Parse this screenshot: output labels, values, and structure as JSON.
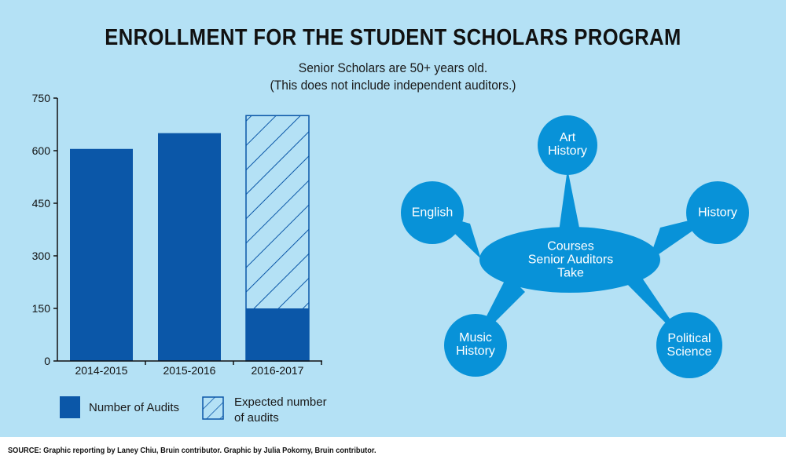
{
  "title": "ENROLLMENT FOR THE STUDENT SCHOLARS PROGRAM",
  "subtitle_line1": "Senior Scholars are 50+ years old.",
  "subtitle_line2": "(This does not include independent auditors.)",
  "source": "SOURCE: Graphic reporting by Laney Chiu, Bruin contributor. Graphic by Julia Pokorny, Bruin contributor.",
  "colors": {
    "background": "#b4e1f5",
    "bar": "#0b57a8",
    "bubble": "#0892d8"
  },
  "chart_data": {
    "type": "bar",
    "categories": [
      "2014-2015",
      "2015-2016",
      "2016-2017"
    ],
    "series": [
      {
        "name": "Number of Audits",
        "values": [
          605,
          650,
          150
        ]
      },
      {
        "name": "Expected number of audits",
        "values": [
          null,
          null,
          700
        ],
        "pattern": "hatched"
      }
    ],
    "yticks": [
      "0",
      "150",
      "300",
      "450",
      "600",
      "750"
    ],
    "ylim": [
      0,
      750
    ],
    "legend": "bottom",
    "grid": false
  },
  "legend": {
    "items": [
      {
        "label": "Number of Audits"
      },
      {
        "label_line1": "Expected number",
        "label_line2": "of audits"
      }
    ]
  },
  "diagram": {
    "center": {
      "line1": "Courses",
      "line2": "Senior Auditors",
      "line3": "Take"
    },
    "nodes": [
      {
        "line1": "Art",
        "line2": "History"
      },
      {
        "line1": "English",
        "line2": ""
      },
      {
        "line1": "History",
        "line2": ""
      },
      {
        "line1": "Music",
        "line2": "History"
      },
      {
        "line1": "Political",
        "line2": "Science"
      }
    ]
  }
}
